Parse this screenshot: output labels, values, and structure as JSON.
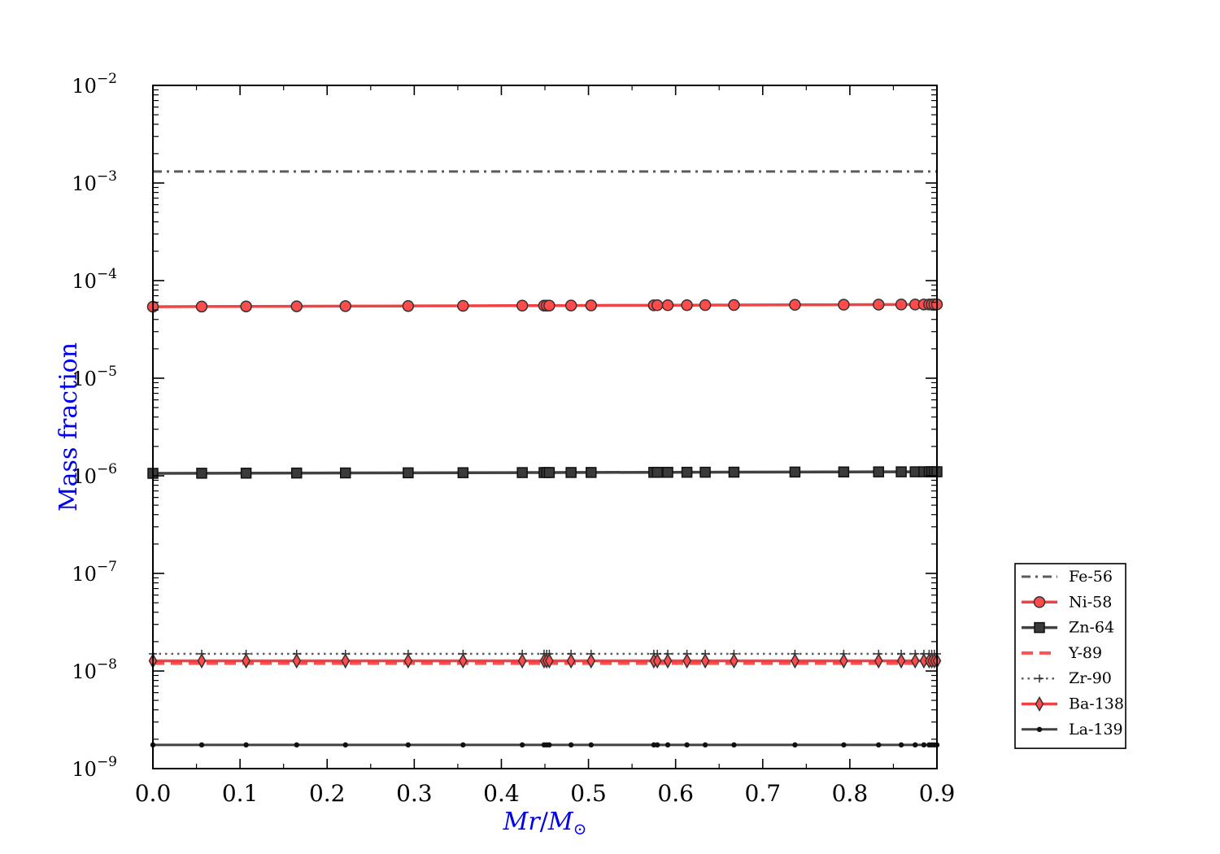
{
  "chart_data": {
    "type": "line",
    "title": "",
    "xlabel_main": "Mr",
    "xlabel_sep": "/",
    "xlabel_M": "M",
    "xlabel_sub": "⊙",
    "ylabel": "Mass fraction",
    "xlim": [
      0.0,
      0.9
    ],
    "ylim": [
      1e-09,
      0.01
    ],
    "yscale": "log",
    "grid": false,
    "legend_position": "outside-right",
    "x_ticks": [
      {
        "value": 0.0,
        "label": "0.0"
      },
      {
        "value": 0.1,
        "label": "0.1"
      },
      {
        "value": 0.2,
        "label": "0.2"
      },
      {
        "value": 0.3,
        "label": "0.3"
      },
      {
        "value": 0.4,
        "label": "0.4"
      },
      {
        "value": 0.5,
        "label": "0.5"
      },
      {
        "value": 0.6,
        "label": "0.6"
      },
      {
        "value": 0.7,
        "label": "0.7"
      },
      {
        "value": 0.8,
        "label": "0.8"
      },
      {
        "value": 0.9,
        "label": "0.9"
      }
    ],
    "y_ticks": [
      {
        "exp": -2,
        "base": "10",
        "sup": "−2"
      },
      {
        "exp": -3,
        "base": "10",
        "sup": "−3"
      },
      {
        "exp": -4,
        "base": "10",
        "sup": "−4"
      },
      {
        "exp": -5,
        "base": "10",
        "sup": "−5"
      },
      {
        "exp": -6,
        "base": "10",
        "sup": "−6"
      },
      {
        "exp": -7,
        "base": "10",
        "sup": "−7"
      },
      {
        "exp": -8,
        "base": "10",
        "sup": "−8"
      },
      {
        "exp": -9,
        "base": "10",
        "sup": "−9"
      }
    ],
    "x": [
      0.0,
      0.056,
      0.107,
      0.165,
      0.221,
      0.293,
      0.356,
      0.424,
      0.449,
      0.452,
      0.455,
      0.48,
      0.503,
      0.575,
      0.579,
      0.591,
      0.613,
      0.634,
      0.667,
      0.737,
      0.793,
      0.833,
      0.859,
      0.875,
      0.885,
      0.891,
      0.894,
      0.897,
      0.9
    ],
    "series": [
      {
        "name": "Fe-56",
        "color": "#404040",
        "dash": "dashdot",
        "marker": "none",
        "width": 3,
        "y_start": 0.00131,
        "y_end": 0.00131
      },
      {
        "name": "Ni-58",
        "color": "#ee2222",
        "dash": "solid",
        "marker": "circle",
        "width": 3.5,
        "y_start": 5.4e-05,
        "y_end": 5.7e-05
      },
      {
        "name": "Zn-64",
        "color": "#202020",
        "dash": "solid",
        "marker": "square",
        "width": 3.5,
        "y_start": 1.06e-06,
        "y_end": 1.1e-06
      },
      {
        "name": "Y-89",
        "color": "#ff3333",
        "dash": "dashed",
        "marker": "none",
        "width": 4,
        "y_start": 1.2e-08,
        "y_end": 1.2e-08
      },
      {
        "name": "Zr-90",
        "color": "#404040",
        "dash": "dotted",
        "marker": "plus",
        "width": 2.5,
        "y_start": 1.5e-08,
        "y_end": 1.5e-08
      },
      {
        "name": "Ba-138",
        "color": "#ee2222",
        "dash": "solid",
        "marker": "thin_diamond",
        "width": 3.5,
        "y_start": 1.27e-08,
        "y_end": 1.27e-08
      },
      {
        "name": "La-139",
        "color": "#202020",
        "dash": "solid",
        "marker": "point",
        "width": 3,
        "y_start": 1.75e-09,
        "y_end": 1.75e-09
      }
    ]
  }
}
